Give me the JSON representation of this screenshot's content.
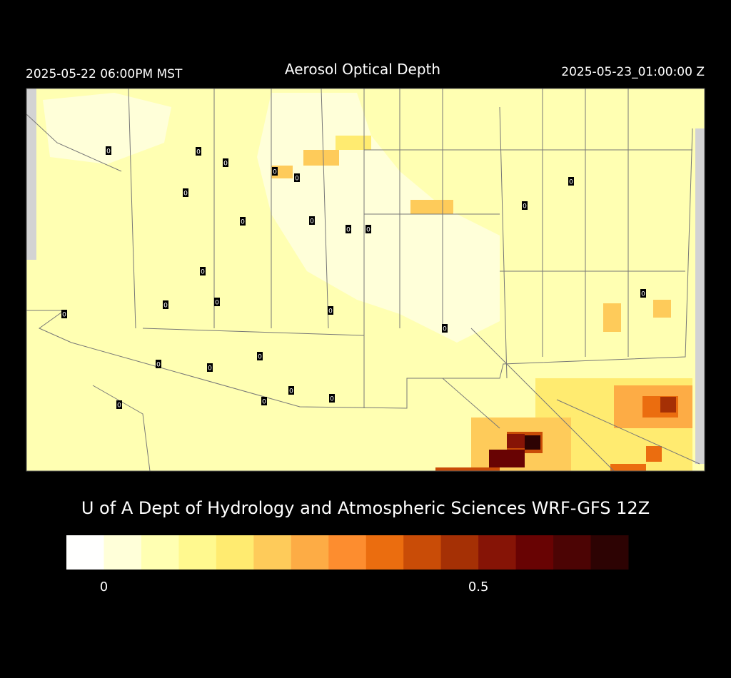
{
  "header": {
    "left": "2025-05-22 06:00PM MST",
    "title": "Aerosol Optical Depth",
    "right": "2025-05-23_01:00:00 Z"
  },
  "stations": [
    0,
    0,
    0,
    0,
    0,
    0,
    0,
    0,
    0,
    0,
    0,
    0,
    0,
    0,
    0,
    0,
    0,
    0,
    0,
    0,
    0,
    0,
    0,
    0,
    0,
    0
  ],
  "credit": "U of A Dept of Hydrology and Atmospheric Sciences WRF-GFS 12Z",
  "colorbar": {
    "colors": [
      "#fffffe",
      "#ffffd9",
      "#ffffb2",
      "#fff98f",
      "#ffeb70",
      "#fecb5a",
      "#fdac45",
      "#fd8d2f",
      "#eb6d0f",
      "#c94c07",
      "#a53005",
      "#861406",
      "#680303",
      "#4c0404",
      "#2d0303"
    ],
    "lim": [
      -0.05,
      0.7
    ],
    "ticks": [
      0,
      0.5
    ]
  }
}
